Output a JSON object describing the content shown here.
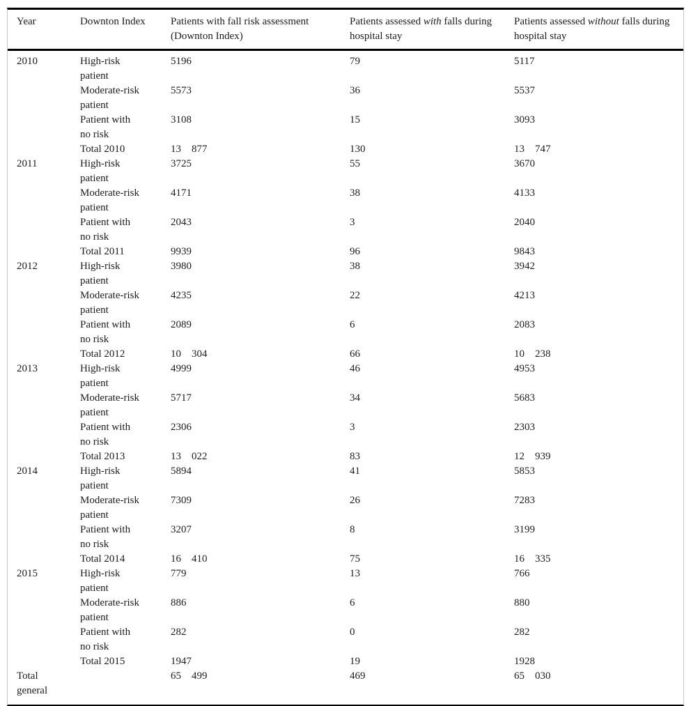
{
  "colors": {
    "text": "#1c1c1c",
    "rule_heavy": "#000000",
    "frame_light": "#c9c9c9",
    "background": "#ffffff"
  },
  "table": {
    "headers": [
      {
        "text": "Year"
      },
      {
        "text": "Downton Index"
      },
      {
        "text": "Patients with fall risk assessment\n(Downton Index)"
      },
      {
        "pre": "Patients assessed ",
        "em": "with",
        "post": " falls during\nhospital stay"
      },
      {
        "pre": "Patients assessed ",
        "em": "without",
        "post": " falls during\nhospital stay"
      }
    ],
    "groups": [
      {
        "year": "2010",
        "rows": [
          {
            "label": "High-risk\npatient",
            "assessed": "5196",
            "with_falls": "79",
            "without_falls": "5117"
          },
          {
            "label": "Moderate-risk\npatient",
            "assessed": "5573",
            "with_falls": "36",
            "without_falls": "5537"
          },
          {
            "label": "Patient with\nno risk",
            "assessed": "3108",
            "with_falls": "15",
            "without_falls": "3093"
          },
          {
            "label": "Total 2010",
            "assessed": "13 877",
            "with_falls": "130",
            "without_falls": "13 747",
            "is_total": true
          }
        ]
      },
      {
        "year": "2011",
        "rows": [
          {
            "label": "High-risk\npatient",
            "assessed": "3725",
            "with_falls": "55",
            "without_falls": "3670"
          },
          {
            "label": "Moderate-risk\npatient",
            "assessed": "4171",
            "with_falls": "38",
            "without_falls": "4133"
          },
          {
            "label": "Patient with\nno risk",
            "assessed": "2043",
            "with_falls": "3",
            "without_falls": "2040"
          },
          {
            "label": "Total 2011",
            "assessed": "9939",
            "with_falls": "96",
            "without_falls": "9843",
            "is_total": true
          }
        ]
      },
      {
        "year": "2012",
        "rows": [
          {
            "label": "High-risk\npatient",
            "assessed": "3980",
            "with_falls": "38",
            "without_falls": "3942"
          },
          {
            "label": "Moderate-risk\npatient",
            "assessed": "4235",
            "with_falls": "22",
            "without_falls": "4213"
          },
          {
            "label": "Patient with\nno risk",
            "assessed": "2089",
            "with_falls": "6",
            "without_falls": "2083"
          },
          {
            "label": "Total 2012",
            "assessed": "10 304",
            "with_falls": "66",
            "without_falls": "10 238",
            "is_total": true
          }
        ]
      },
      {
        "year": "2013",
        "rows": [
          {
            "label": "High-risk\npatient",
            "assessed": "4999",
            "with_falls": "46",
            "without_falls": "4953"
          },
          {
            "label": "Moderate-risk\npatient",
            "assessed": "5717",
            "with_falls": "34",
            "without_falls": "5683"
          },
          {
            "label": "Patient with\nno risk",
            "assessed": "2306",
            "with_falls": "3",
            "without_falls": "2303"
          },
          {
            "label": "Total 2013",
            "assessed": "13 022",
            "with_falls": "83",
            "without_falls": "12 939",
            "is_total": true
          }
        ]
      },
      {
        "year": "2014",
        "rows": [
          {
            "label": "High-risk\npatient",
            "assessed": "5894",
            "with_falls": "41",
            "without_falls": "5853"
          },
          {
            "label": "Moderate-risk\npatient",
            "assessed": "7309",
            "with_falls": "26",
            "without_falls": "7283"
          },
          {
            "label": "Patient with\nno risk",
            "assessed": "3207",
            "with_falls": "8",
            "without_falls": "3199"
          },
          {
            "label": "Total 2014",
            "assessed": "16 410",
            "with_falls": "75",
            "without_falls": "16 335",
            "is_total": true
          }
        ]
      },
      {
        "year": "2015",
        "rows": [
          {
            "label": "High-risk\npatient",
            "assessed": "779",
            "with_falls": "13",
            "without_falls": "766"
          },
          {
            "label": "Moderate-risk\npatient",
            "assessed": "886",
            "with_falls": "6",
            "without_falls": "880"
          },
          {
            "label": "Patient with\nno risk",
            "assessed": "282",
            "with_falls": "0",
            "without_falls": "282"
          },
          {
            "label": "Total 2015",
            "assessed": "1947",
            "with_falls": "19",
            "without_falls": "1928",
            "is_total": true
          }
        ]
      }
    ],
    "grand_total": {
      "label": "Total\ngeneral",
      "assessed": "65 499",
      "with_falls": "469",
      "without_falls": "65 030"
    }
  }
}
